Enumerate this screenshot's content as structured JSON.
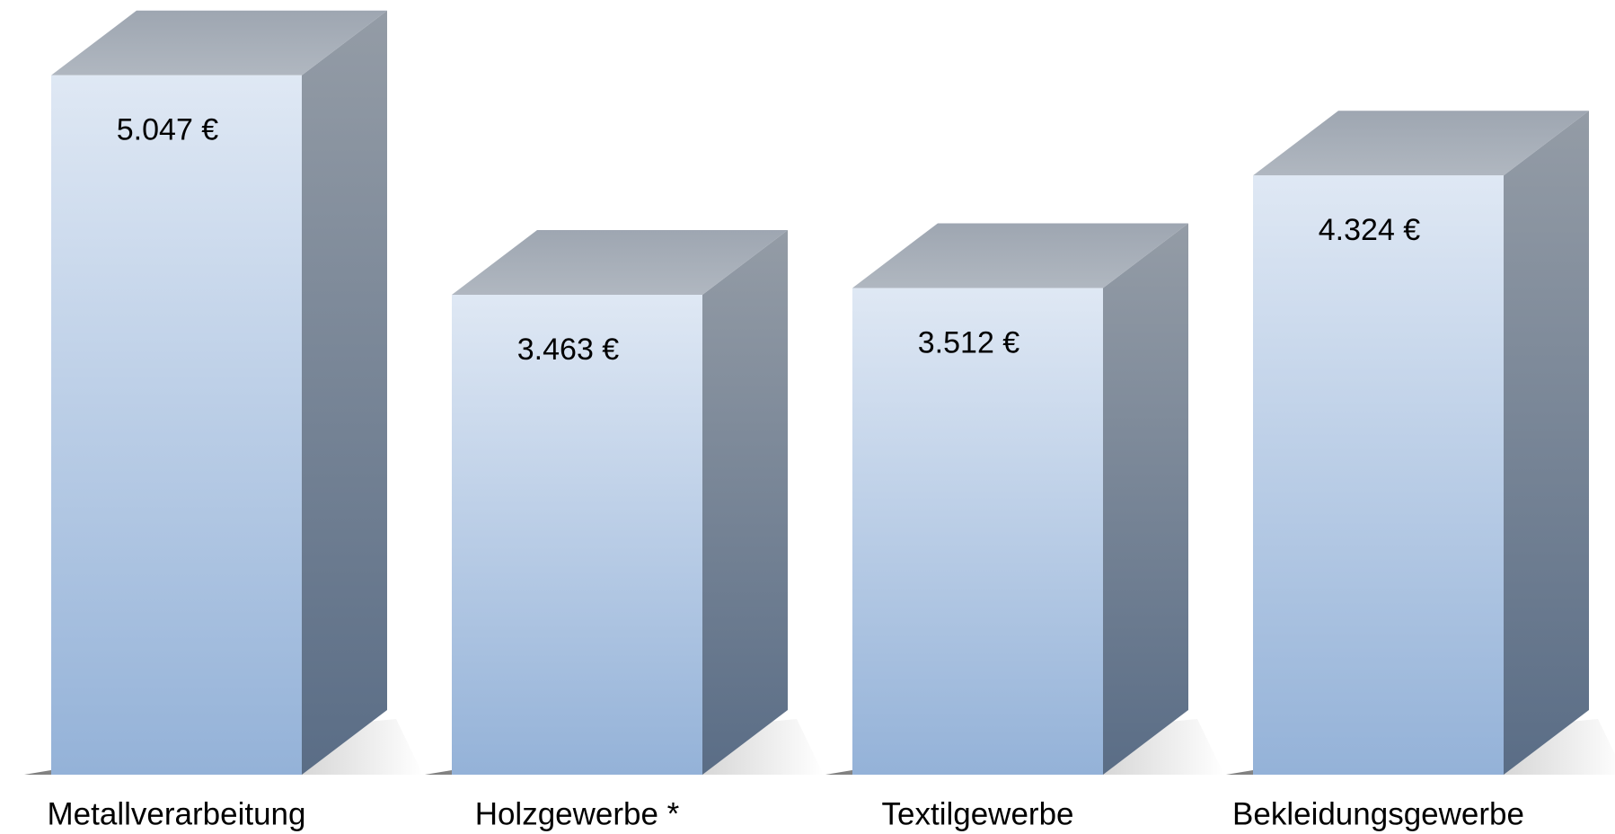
{
  "chart_data": {
    "type": "bar3d",
    "categories": [
      "Metallverarbeitung",
      "Holzgewerbe *",
      "Textilgewerbe",
      "Bekleidungsgewerbe"
    ],
    "values": [
      5047,
      3463,
      3512,
      4324
    ],
    "value_labels": [
      "5.047 €",
      "3.463 €",
      "3.512 €",
      "4.324 €"
    ]
  }
}
